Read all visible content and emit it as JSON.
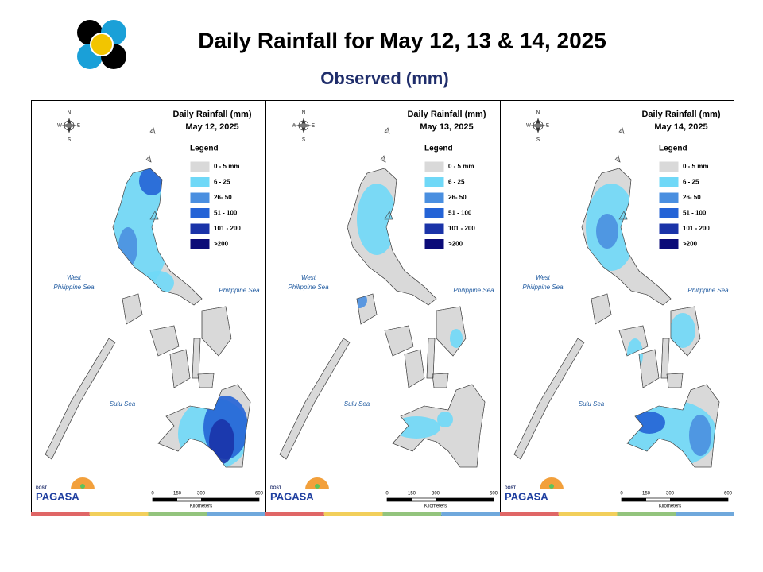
{
  "header": {
    "title": "Daily Rainfall for May 12, 13 & 14, 2025",
    "subtitle": "Observed (mm)"
  },
  "panels": [
    {
      "title": "Daily Rainfall (mm)",
      "date": "May 12, 2025"
    },
    {
      "title": "Daily Rainfall (mm)",
      "date": "May 13, 2025"
    },
    {
      "title": "Daily Rainfall (mm)",
      "date": "May 14, 2025"
    }
  ],
  "legend": {
    "title": "Legend",
    "items": [
      {
        "label": "0 - 5 mm",
        "color": "#d9d9d9"
      },
      {
        "label": "6 - 25",
        "color": "#6fd8f7"
      },
      {
        "label": "26- 50",
        "color": "#4a8fe0"
      },
      {
        "label": "51 - 100",
        "color": "#2463d6"
      },
      {
        "label": "101 - 200",
        "color": "#1a33a8"
      },
      {
        "label": ">200",
        "color": "#0b0b78"
      }
    ]
  },
  "compass": [
    "N",
    "S",
    "E",
    "W"
  ],
  "seas": {
    "west": [
      "West",
      "Philippine Sea"
    ],
    "east": "Philippine Sea",
    "sulu": "Sulu Sea"
  },
  "scale": {
    "ticks": [
      "0",
      "150",
      "300",
      "600"
    ],
    "unit": "Kilometers"
  },
  "logo": {
    "agency": "PAGASA",
    "dept": "DOST"
  }
}
